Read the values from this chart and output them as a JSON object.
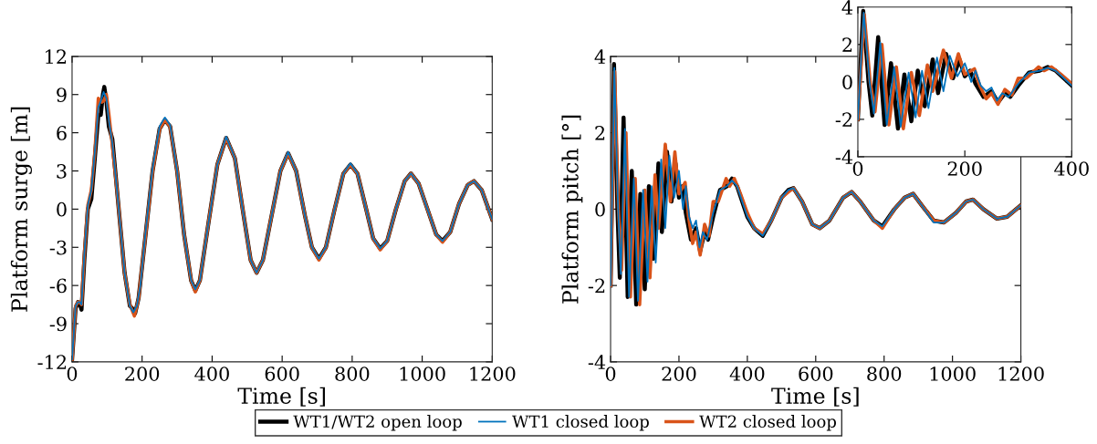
{
  "chart_data": [
    {
      "type": "line",
      "xlabel": "Time [s]",
      "ylabel": "Platform surge [m]",
      "xlim": [
        0,
        1200
      ],
      "xticks": [
        0,
        200,
        400,
        600,
        800,
        1000,
        1200
      ],
      "ylim": [
        -12,
        12
      ],
      "yticks": [
        -12,
        -9,
        -6,
        -3,
        0,
        3,
        6,
        9,
        12
      ],
      "grid": false,
      "legend": "bottom",
      "marker": "none",
      "line_style": "solid",
      "series": [
        {
          "name": "WT1/WT2 open loop",
          "color": "#000000",
          "x": [
            0,
            10,
            17,
            22,
            27,
            35,
            45,
            55,
            65,
            75,
            82,
            88,
            92,
            98,
            105,
            115,
            130,
            150,
            165,
            172,
            180,
            190,
            210,
            230,
            250,
            265,
            280,
            300,
            320,
            340,
            352,
            365,
            390,
            415,
            440,
            465,
            490,
            510,
            527,
            545,
            570,
            595,
            617,
            640,
            665,
            685,
            705,
            725,
            750,
            775,
            795,
            815,
            840,
            860,
            880,
            900,
            925,
            950,
            968,
            990,
            1015,
            1040,
            1058,
            1080,
            1105,
            1130,
            1148,
            1170,
            1200
          ],
          "values": [
            -11.8,
            -7.8,
            -7.3,
            -7.4,
            -7.9,
            -4,
            0,
            0.8,
            4,
            7.4,
            7.4,
            9,
            9.6,
            8.5,
            6.5,
            5.5,
            1,
            -5,
            -7.6,
            -7.8,
            -8.2,
            -7,
            -2,
            3,
            6.3,
            7,
            6.5,
            3,
            -2,
            -5.6,
            -6.4,
            -5.6,
            -1,
            3.5,
            5.6,
            4,
            -0.5,
            -4,
            -5,
            -4,
            -0.5,
            3,
            4.4,
            3,
            -0.5,
            -3,
            -3.9,
            -3,
            0,
            2.8,
            3.5,
            2.8,
            0,
            -2.3,
            -3.1,
            -2.5,
            0,
            2.2,
            2.8,
            2,
            0,
            -2,
            -2.5,
            -1.8,
            0.4,
            1.9,
            2.2,
            1.5,
            -0.8
          ]
        },
        {
          "name": "WT1 closed loop",
          "color": "#0072bd",
          "x": [
            0,
            10,
            17,
            22,
            27,
            35,
            45,
            55,
            65,
            75,
            82,
            90,
            98,
            105,
            115,
            130,
            150,
            165,
            175,
            185,
            195,
            210,
            230,
            250,
            265,
            280,
            300,
            320,
            340,
            352,
            365,
            390,
            415,
            440,
            465,
            490,
            510,
            527,
            545,
            570,
            595,
            617,
            640,
            665,
            685,
            705,
            725,
            750,
            775,
            795,
            815,
            840,
            860,
            880,
            900,
            925,
            950,
            968,
            990,
            1015,
            1040,
            1058,
            1080,
            1105,
            1130,
            1148,
            1170,
            1200
          ],
          "values": [
            -11.8,
            -7.6,
            -7.3,
            -7.3,
            -7.5,
            -3.5,
            0.3,
            1.5,
            4.5,
            8,
            8.5,
            9.2,
            8.7,
            7,
            5.2,
            1,
            -5,
            -7.6,
            -8.1,
            -7.6,
            -6,
            -1.8,
            3.2,
            6.5,
            7.2,
            6.6,
            3,
            -2,
            -5.6,
            -6.3,
            -5.6,
            -1,
            3.5,
            5.7,
            4,
            -0.5,
            -4,
            -5,
            -4,
            -0.5,
            3,
            4.5,
            3,
            -0.5,
            -3,
            -3.9,
            -3,
            0,
            2.8,
            3.6,
            2.8,
            0,
            -2.3,
            -3.1,
            -2.5,
            0,
            2.2,
            2.8,
            2,
            0,
            -2,
            -2.5,
            -1.8,
            0.4,
            1.9,
            2.2,
            1.5,
            -0.8
          ]
        },
        {
          "name": "WT2 closed loop",
          "color": "#d95319",
          "x": [
            0,
            10,
            17,
            22,
            27,
            35,
            45,
            55,
            65,
            75,
            85,
            90,
            98,
            105,
            115,
            130,
            150,
            165,
            178,
            190,
            210,
            230,
            250,
            265,
            280,
            300,
            320,
            340,
            352,
            365,
            390,
            415,
            440,
            465,
            490,
            510,
            527,
            545,
            570,
            595,
            617,
            640,
            665,
            685,
            705,
            725,
            750,
            775,
            795,
            815,
            840,
            860,
            880,
            900,
            925,
            950,
            968,
            990,
            1015,
            1040,
            1058,
            1080,
            1105,
            1130,
            1148,
            1170,
            1200
          ],
          "values": [
            -11.8,
            -7.6,
            -7.3,
            -7.3,
            -7.5,
            -3.5,
            0.3,
            1.5,
            4.5,
            8.7,
            8.4,
            8.5,
            9.0,
            7.5,
            5,
            1,
            -5,
            -7.5,
            -8.4,
            -7,
            -2,
            3,
            6.3,
            7,
            6.5,
            3,
            -2,
            -5.6,
            -6.5,
            -5.6,
            -1,
            3.5,
            5.6,
            4,
            -0.5,
            -4,
            -5,
            -4,
            -0.5,
            3,
            4.4,
            3,
            -0.5,
            -3,
            -4,
            -3,
            0,
            2.8,
            3.5,
            2.8,
            0,
            -2.3,
            -3.2,
            -2.5,
            0,
            2.2,
            2.8,
            2,
            0,
            -2,
            -2.6,
            -1.8,
            0.4,
            1.9,
            2.2,
            1.5,
            -0.8
          ]
        }
      ]
    },
    {
      "type": "line",
      "xlabel": "Time [s]",
      "ylabel": "Platform pitch [°]",
      "xlim": [
        0,
        1200
      ],
      "xticks": [
        0,
        200,
        400,
        600,
        800,
        1000,
        1200
      ],
      "ylim": [
        -4,
        4
      ],
      "yticks": [
        -4,
        -2,
        0,
        2,
        4
      ],
      "grid": false,
      "marker": "none",
      "line_style": "solid",
      "series": [
        {
          "color": "#000000",
          "x": [
            0,
            10,
            20,
            27,
            38,
            50,
            62,
            75,
            87,
            100,
            112,
            125,
            140,
            150,
            165,
            178,
            190,
            200,
            210,
            220,
            235,
            250,
            262,
            275,
            285,
            300,
            320,
            340,
            355,
            370,
            400,
            420,
            445,
            470,
            500,
            520,
            535,
            560,
            590,
            612,
            640,
            680,
            705,
            730,
            770,
            795,
            830,
            860,
            885,
            910,
            945,
            975,
            1010,
            1040,
            1060,
            1090,
            1130,
            1160,
            1200
          ],
          "values": [
            -2,
            3.8,
            0,
            -1.8,
            2.4,
            -2.3,
            1.0,
            -2.5,
            0.4,
            -2.1,
            0.6,
            -1.3,
            1.2,
            -0.6,
            1.5,
            0.2,
            1.2,
            0.3,
            0.6,
            -0.1,
            -0.8,
            -0.5,
            -1.1,
            -0.6,
            -0.8,
            -0.2,
            0.5,
            0.6,
            0.8,
            0.6,
            -0.2,
            -0.5,
            -0.7,
            -0.3,
            0.3,
            0.5,
            0.55,
            0.2,
            -0.4,
            -0.5,
            -0.3,
            0.3,
            0.45,
            0.2,
            -0.3,
            -0.45,
            0,
            0.3,
            0.4,
            0.1,
            -0.3,
            -0.35,
            -0.1,
            0.2,
            0.25,
            0,
            -0.25,
            -0.2,
            0.1
          ]
        },
        {
          "color": "#0072bd",
          "x": [
            0,
            11,
            22,
            30,
            42,
            54,
            68,
            80,
            95,
            108,
            120,
            132,
            148,
            160,
            172,
            186,
            200,
            212,
            220,
            230,
            240,
            250,
            260,
            270,
            282,
            300,
            320,
            340,
            355,
            370,
            400,
            420,
            445,
            470,
            500,
            520,
            535,
            560,
            590,
            612,
            640,
            680,
            705,
            730,
            770,
            795,
            830,
            860,
            885,
            910,
            945,
            975,
            1010,
            1040,
            1060,
            1090,
            1130,
            1160,
            1200
          ],
          "values": [
            -2,
            3.7,
            0,
            -1.7,
            2.1,
            -2.3,
            0.8,
            -2.4,
            0.5,
            -1.9,
            0.6,
            -1.4,
            1.3,
            -0.5,
            1.4,
            0.3,
            1.0,
            0,
            0.6,
            -0.2,
            -0.5,
            -0.3,
            -1.0,
            -0.6,
            -0.8,
            -0.1,
            0.5,
            0.6,
            0.75,
            0.6,
            -0.2,
            -0.5,
            -0.7,
            -0.3,
            0.3,
            0.5,
            0.55,
            0.2,
            -0.4,
            -0.5,
            -0.3,
            0.3,
            0.45,
            0.2,
            -0.3,
            -0.45,
            0,
            0.3,
            0.4,
            0.1,
            -0.35,
            -0.35,
            -0.1,
            0.2,
            0.25,
            0,
            -0.25,
            -0.2,
            0.1
          ]
        },
        {
          "color": "#d95319",
          "x": [
            0,
            12,
            23,
            32,
            45,
            58,
            72,
            85,
            100,
            115,
            130,
            140,
            160,
            175,
            188,
            200,
            218,
            228,
            240,
            250,
            262,
            275,
            288,
            300,
            315,
            338,
            348,
            362,
            380,
            400,
            420,
            445,
            470,
            500,
            520,
            535,
            560,
            590,
            612,
            640,
            680,
            705,
            730,
            770,
            795,
            830,
            860,
            885,
            910,
            945,
            975,
            1010,
            1040,
            1060,
            1090,
            1130,
            1160,
            1200
          ],
          "values": [
            -2,
            3.6,
            0,
            -1.6,
            2.0,
            -2.3,
            0.8,
            -2.5,
            0.5,
            -1.8,
            0.9,
            -0.5,
            1.7,
            0.2,
            1.5,
            0.4,
            0.7,
            -0.2,
            -0.9,
            -0.6,
            -1.2,
            -0.4,
            -0.7,
            0.2,
            0.2,
            0.8,
            0.6,
            0.8,
            0.4,
            -0.1,
            -0.5,
            -0.65,
            -0.3,
            0.3,
            0.45,
            0.55,
            0.2,
            -0.4,
            -0.5,
            -0.3,
            0.3,
            0.45,
            0.2,
            -0.3,
            -0.5,
            0,
            0.3,
            0.4,
            0.1,
            -0.3,
            -0.35,
            -0.1,
            0.2,
            0.25,
            0,
            -0.25,
            -0.2,
            0.1
          ]
        }
      ]
    },
    {
      "type": "line",
      "xlim": [
        0,
        400
      ],
      "xticks": [
        0,
        200,
        400
      ],
      "ylim": [
        -4,
        4
      ],
      "yticks": [
        -4,
        -2,
        0,
        2,
        4
      ],
      "grid": false,
      "marker": "none",
      "line_style": "solid",
      "series": [
        {
          "color": "#000000",
          "x": [
            0,
            10,
            20,
            27,
            38,
            50,
            62,
            75,
            87,
            100,
            112,
            125,
            140,
            150,
            165,
            178,
            190,
            200,
            210,
            220,
            235,
            250,
            262,
            275,
            285,
            300,
            320,
            340,
            355,
            370,
            400
          ],
          "values": [
            -2,
            3.8,
            0,
            -1.8,
            2.4,
            -2.3,
            1.0,
            -2.5,
            0.4,
            -2.1,
            0.6,
            -1.3,
            1.2,
            -0.6,
            1.5,
            0.2,
            1.2,
            0.3,
            0.6,
            -0.1,
            -0.8,
            -0.5,
            -1.1,
            -0.6,
            -0.8,
            -0.2,
            0.5,
            0.6,
            0.8,
            0.6,
            -0.2
          ]
        },
        {
          "color": "#0072bd",
          "x": [
            0,
            11,
            22,
            30,
            42,
            54,
            68,
            80,
            95,
            108,
            120,
            132,
            148,
            160,
            172,
            186,
            200,
            212,
            220,
            230,
            240,
            250,
            260,
            270,
            282,
            300,
            320,
            340,
            355,
            370,
            400
          ],
          "values": [
            -2,
            3.7,
            0,
            -1.7,
            2.1,
            -2.3,
            0.8,
            -2.4,
            0.5,
            -1.9,
            0.6,
            -1.4,
            1.3,
            -0.5,
            1.4,
            0.3,
            1.0,
            0,
            0.6,
            -0.2,
            -0.5,
            -0.3,
            -1.0,
            -0.6,
            -0.8,
            -0.1,
            0.5,
            0.6,
            0.75,
            0.6,
            -0.2
          ]
        },
        {
          "color": "#d95319",
          "x": [
            0,
            12,
            23,
            32,
            45,
            58,
            72,
            85,
            100,
            115,
            130,
            140,
            160,
            175,
            188,
            200,
            218,
            228,
            240,
            250,
            262,
            275,
            288,
            300,
            315,
            338,
            348,
            362,
            380,
            400
          ],
          "values": [
            -2,
            3.6,
            0,
            -1.6,
            2.0,
            -2.3,
            0.8,
            -2.5,
            0.5,
            -1.8,
            0.9,
            -0.5,
            1.7,
            0.2,
            1.5,
            0.4,
            0.7,
            -0.2,
            -0.9,
            -0.6,
            -1.2,
            -0.4,
            -0.7,
            0.2,
            0.2,
            0.8,
            0.6,
            0.8,
            0.4,
            -0.1
          ]
        }
      ]
    }
  ]
}
